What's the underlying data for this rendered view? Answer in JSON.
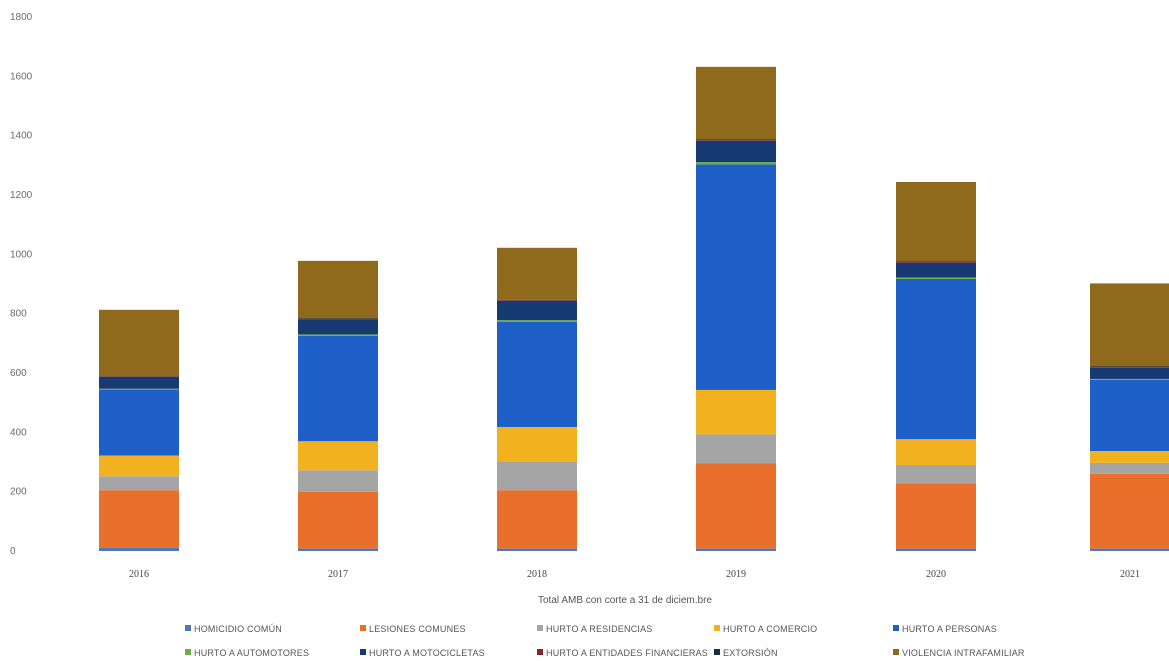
{
  "chart_data": {
    "type": "bar",
    "stacked": true,
    "title": "",
    "xlabel": "Total AMB con corte a 31 de diciem.bre",
    "ylabel": "",
    "ylim": [
      0,
      1800
    ],
    "yticks": [
      "0",
      "200",
      "400",
      "600",
      "800",
      "1000",
      "1200",
      "1400",
      "1600",
      "1800"
    ],
    "categories": [
      "2016",
      "2017",
      "2018",
      "2019",
      "2020",
      "2021"
    ],
    "grid": false,
    "legend_position": "bottom",
    "series": [
      {
        "name": "HOMICIDIO COMÚN",
        "color": "#4a78c0",
        "values": [
          10,
          8,
          8,
          8,
          8,
          8
        ]
      },
      {
        "name": "LESIONES COMUNES",
        "color": "#e8702a",
        "values": [
          195,
          192,
          197,
          287,
          220,
          252
        ]
      },
      {
        "name": "HURTO A RESIDENCIAS",
        "color": "#a5a5a5",
        "values": [
          47,
          72,
          95,
          98,
          62,
          37
        ]
      },
      {
        "name": "HURTO A COMERCIO",
        "color": "#f2b21f",
        "values": [
          70,
          98,
          118,
          150,
          87,
          40
        ]
      },
      {
        "name": "HURTO A PERSONAS",
        "color": "#1f5fc8",
        "values": [
          222,
          355,
          355,
          760,
          540,
          240
        ]
      },
      {
        "name": "HURTO A AUTOMOTORES",
        "color": "#70ad47",
        "values": [
          3,
          5,
          5,
          8,
          5,
          3
        ]
      },
      {
        "name": "HURTO A MOTOCICLETAS",
        "color": "#173a73",
        "values": [
          40,
          50,
          65,
          72,
          50,
          38
        ]
      },
      {
        "name": "HURTO A ENTIDADES FINANCIERAS",
        "color": "#8b2323",
        "values": [
          2,
          2,
          2,
          2,
          2,
          2
        ]
      },
      {
        "name": "EXTORSIÓN",
        "color": "#1b2a49",
        "values": [
          2,
          2,
          2,
          2,
          2,
          2
        ]
      },
      {
        "name": "VIOLENCIA INTRAFAMILIAR",
        "color": "#8f6a1c",
        "values": [
          222,
          194,
          175,
          245,
          268,
          280
        ]
      }
    ]
  }
}
